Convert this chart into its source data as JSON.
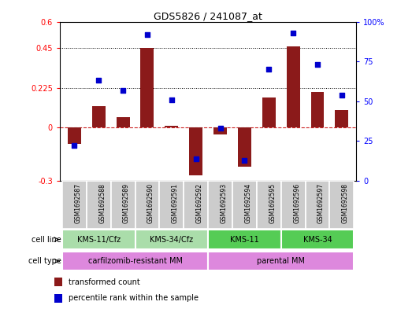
{
  "title": "GDS5826 / 241087_at",
  "samples": [
    "GSM1692587",
    "GSM1692588",
    "GSM1692589",
    "GSM1692590",
    "GSM1692591",
    "GSM1692592",
    "GSM1692593",
    "GSM1692594",
    "GSM1692595",
    "GSM1692596",
    "GSM1692597",
    "GSM1692598"
  ],
  "transformed_count": [
    -0.09,
    0.12,
    0.06,
    0.45,
    0.01,
    -0.27,
    -0.04,
    -0.22,
    0.17,
    0.46,
    0.2,
    0.1
  ],
  "percentile_rank": [
    22,
    63,
    57,
    92,
    51,
    14,
    33,
    13,
    70,
    93,
    73,
    54
  ],
  "ylim_left": [
    -0.3,
    0.6
  ],
  "ylim_right": [
    0,
    100
  ],
  "yticks_left": [
    -0.3,
    0.0,
    0.225,
    0.45,
    0.6
  ],
  "ytick_labels_left": [
    "-0.3",
    "0",
    "0.225",
    "0.45",
    "0.6"
  ],
  "yticks_right": [
    0,
    25,
    50,
    75,
    100
  ],
  "ytick_labels_right": [
    "0",
    "25",
    "50",
    "75",
    "100%"
  ],
  "hlines": [
    0.225,
    0.45
  ],
  "bar_color": "#8B1A1A",
  "scatter_color": "#0000CD",
  "zero_line_color": "#CC2222",
  "cell_line_groups": [
    {
      "label": "KMS-11/Cfz",
      "start": 0,
      "end": 2,
      "color": "#AADDAA"
    },
    {
      "label": "KMS-34/Cfz",
      "start": 3,
      "end": 5,
      "color": "#AADDAA"
    },
    {
      "label": "KMS-11",
      "start": 6,
      "end": 8,
      "color": "#55CC55"
    },
    {
      "label": "KMS-34",
      "start": 9,
      "end": 11,
      "color": "#55CC55"
    }
  ],
  "cell_type_groups": [
    {
      "label": "carfilzomib-resistant MM",
      "start": 0,
      "end": 5,
      "color": "#DD88DD"
    },
    {
      "label": "parental MM",
      "start": 6,
      "end": 11,
      "color": "#DD88DD"
    }
  ],
  "legend_items": [
    {
      "label": "transformed count",
      "color": "#8B1A1A"
    },
    {
      "label": "percentile rank within the sample",
      "color": "#0000CD"
    }
  ],
  "cell_line_label": "cell line",
  "cell_type_label": "cell type",
  "sample_bg_color": "#CCCCCC"
}
